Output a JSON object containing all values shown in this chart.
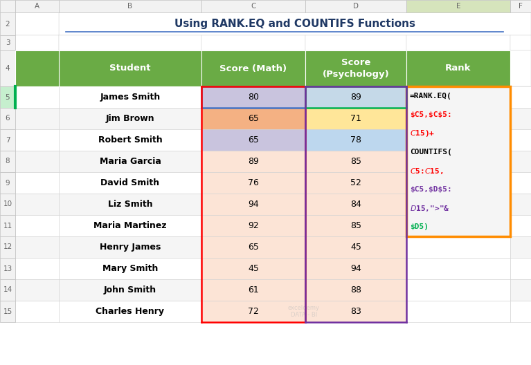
{
  "title": "Using RANK.EQ and COUNTIFS Functions",
  "rows": [
    [
      "James Smith",
      "80",
      "89"
    ],
    [
      "Jim Brown",
      "65",
      "71"
    ],
    [
      "Robert Smith",
      "65",
      "78"
    ],
    [
      "Maria Garcia",
      "89",
      "85"
    ],
    [
      "David Smith",
      "76",
      "52"
    ],
    [
      "Liz Smith",
      "94",
      "84"
    ],
    [
      "Maria Martinez",
      "92",
      "85"
    ],
    [
      "Henry James",
      "65",
      "45"
    ],
    [
      "Mary Smith",
      "45",
      "94"
    ],
    [
      "John Smith",
      "61",
      "88"
    ],
    [
      "Charles Henry",
      "72",
      "83"
    ]
  ],
  "formula_lines": [
    {
      "text": "=RANK.EQ(",
      "color": "#000000"
    },
    {
      "text": "$C5,$C$5:",
      "color": "#FF0000"
    },
    {
      "text": "$C$15)+",
      "color": "#FF0000"
    },
    {
      "text": "COUNTIFS(",
      "color": "#000000"
    },
    {
      "text": "$C$5:$C$15,",
      "color": "#FF0000"
    },
    {
      "text": "$C5,$D$5:",
      "color": "#7030A0"
    },
    {
      "text": "$D$15,\">\"&",
      "color": "#7030A0"
    },
    {
      "text": "$D5)",
      "color": "#00B050"
    }
  ],
  "header_bg": "#6AAB45",
  "header_fg": "#FFFFFF",
  "title_color": "#1F3864",
  "cell_colors": {
    "0_C": "#C9C4DE",
    "0_D": "#C5D9E8",
    "1_C": "#F4B183",
    "1_D": "#FFE699",
    "2_C": "#C9C4DE",
    "2_D": "#BDD7EE",
    "3_C": "#FCE4D6",
    "3_D": "#FCE4D6",
    "4_C": "#FCE4D6",
    "4_D": "#FCE4D6",
    "5_C": "#FCE4D6",
    "5_D": "#FCE4D6",
    "6_C": "#FCE4D6",
    "6_D": "#FCE4D6",
    "7_C": "#FCE4D6",
    "7_D": "#FCE4D6",
    "8_C": "#FCE4D6",
    "8_D": "#FCE4D6",
    "9_C": "#FCE4D6",
    "9_D": "#FCE4D6",
    "10_C": "#FCE4D6",
    "10_D": "#FCE4D6"
  },
  "col_letter_header_bg": "#F2F2F2",
  "col_letter_header_fg": "#666666",
  "row_num_bg": "#F2F2F2",
  "row_num_fg": "#666666",
  "row_num_selected_bg": "#C6EFCE",
  "col_e_header_bg": "#D6E4BC",
  "grid_line_color": "#D0D0D0",
  "border_blue": "#4472C4",
  "border_red": "#FF0000",
  "border_green": "#00B050",
  "border_purple": "#7030A0",
  "border_orange": "#FF8C00",
  "formula_bg": "#F5F5F5",
  "title_underline_color": "#4472C4",
  "watermark_color": "#AAAAAA"
}
